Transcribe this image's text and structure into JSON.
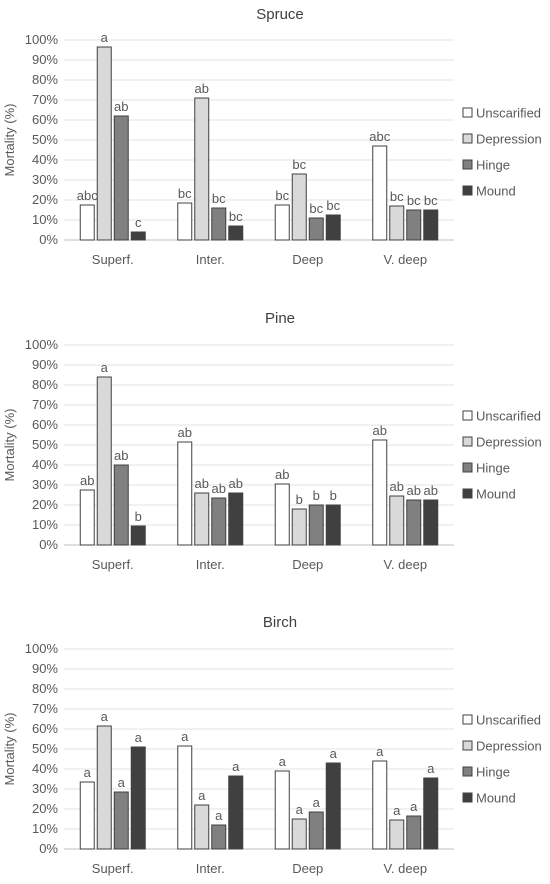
{
  "chart_data": [
    {
      "type": "bar",
      "title": "Spruce",
      "ylabel": "Mortality (%)",
      "ylim": [
        0,
        100
      ],
      "yticks": [
        "0%",
        "10%",
        "20%",
        "30%",
        "40%",
        "50%",
        "60%",
        "70%",
        "80%",
        "90%",
        "100%"
      ],
      "categories": [
        "Superf.",
        "Inter.",
        "Deep",
        "V. deep"
      ],
      "series": [
        {
          "name": "Unscarified",
          "color": "#ffffff",
          "values": [
            17.5,
            18.5,
            17.5,
            47
          ],
          "labels": [
            "abc",
            "bc",
            "bc",
            "abc"
          ]
        },
        {
          "name": "Depression",
          "color": "#d9d9d9",
          "values": [
            96.5,
            71,
            33,
            17
          ],
          "labels": [
            "a",
            "ab",
            "bc",
            "bc"
          ]
        },
        {
          "name": "Hinge",
          "color": "#808080",
          "values": [
            62,
            16,
            11,
            15
          ],
          "labels": [
            "ab",
            "bc",
            "bc",
            "bc"
          ]
        },
        {
          "name": "Mound",
          "color": "#404040",
          "values": [
            4,
            7,
            12.5,
            15
          ],
          "labels": [
            "c",
            "bc",
            "bc",
            "bc"
          ]
        }
      ],
      "grid": true,
      "legend": "right"
    },
    {
      "type": "bar",
      "title": "Pine",
      "ylabel": "Mortality (%)",
      "ylim": [
        0,
        100
      ],
      "yticks": [
        "0%",
        "10%",
        "20%",
        "30%",
        "40%",
        "50%",
        "60%",
        "70%",
        "80%",
        "90%",
        "100%"
      ],
      "categories": [
        "Superf.",
        "Inter.",
        "Deep",
        "V. deep"
      ],
      "series": [
        {
          "name": "Unscarified",
          "color": "#ffffff",
          "values": [
            27.5,
            51.5,
            30.5,
            52.5
          ],
          "labels": [
            "ab",
            "ab",
            "ab",
            "ab"
          ]
        },
        {
          "name": "Depression",
          "color": "#d9d9d9",
          "values": [
            84,
            26,
            18,
            24.5
          ],
          "labels": [
            "a",
            "ab",
            "b",
            "ab"
          ]
        },
        {
          "name": "Hinge",
          "color": "#808080",
          "values": [
            40,
            23.5,
            20,
            22.5
          ],
          "labels": [
            "ab",
            "ab",
            "b",
            "ab"
          ]
        },
        {
          "name": "Mound",
          "color": "#404040",
          "values": [
            9.5,
            26,
            20,
            22.5
          ],
          "labels": [
            "b",
            "ab",
            "b",
            "ab"
          ]
        }
      ],
      "grid": true,
      "legend": "right"
    },
    {
      "type": "bar",
      "title": "Birch",
      "ylabel": "Mortality (%)",
      "ylim": [
        0,
        100
      ],
      "yticks": [
        "0%",
        "10%",
        "20%",
        "30%",
        "40%",
        "50%",
        "60%",
        "70%",
        "80%",
        "90%",
        "100%"
      ],
      "categories": [
        "Superf.",
        "Inter.",
        "Deep",
        "V. deep"
      ],
      "series": [
        {
          "name": "Unscarified",
          "color": "#ffffff",
          "values": [
            33.5,
            51.5,
            39,
            44
          ],
          "labels": [
            "a",
            "a",
            "a",
            "a"
          ]
        },
        {
          "name": "Depression",
          "color": "#d9d9d9",
          "values": [
            61.5,
            22,
            15,
            14.5
          ],
          "labels": [
            "a",
            "a",
            "a",
            "a"
          ]
        },
        {
          "name": "Hinge",
          "color": "#808080",
          "values": [
            28.5,
            12,
            18.5,
            16.5
          ],
          "labels": [
            "a",
            "a",
            "a",
            "a"
          ]
        },
        {
          "name": "Mound",
          "color": "#404040",
          "values": [
            51,
            36.5,
            43,
            35.5
          ],
          "labels": [
            "a",
            "a",
            "a",
            "a"
          ]
        }
      ],
      "grid": true,
      "legend": "right"
    }
  ]
}
